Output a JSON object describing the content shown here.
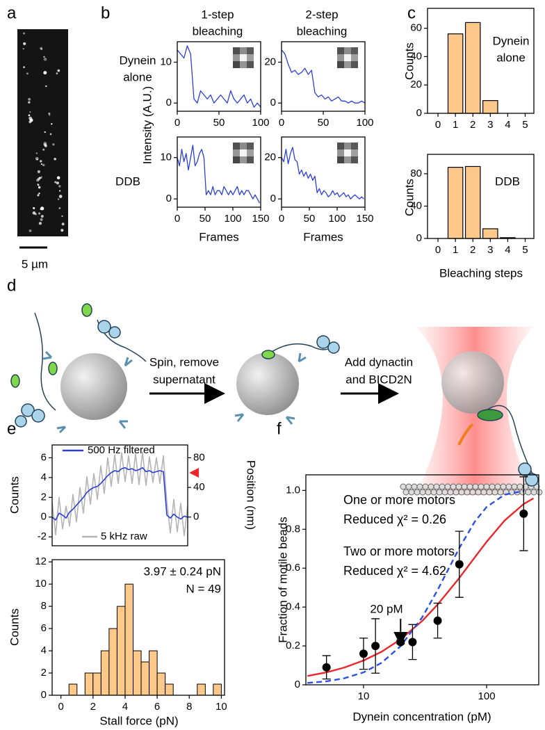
{
  "panel_labels": [
    "a",
    "b",
    "c",
    "d",
    "e",
    "f"
  ],
  "image": {
    "scale_bar": "5 µm"
  },
  "diagram": {
    "steps": [
      [
        "Spin, remove",
        "supernatant"
      ],
      [
        "Add dynactin",
        "and BICD2N"
      ]
    ]
  },
  "chart_data": [
    {
      "type": "line",
      "title": [
        "1-step",
        "bleaching"
      ],
      "row_label": [
        "Dynein",
        "alone"
      ],
      "ylabel": "Intensity (A.U.)",
      "x": [
        0,
        4,
        8,
        12,
        16,
        20,
        24,
        28,
        32,
        36,
        40,
        44,
        48,
        52,
        56,
        60,
        64,
        68,
        72,
        76,
        80,
        84,
        88,
        92,
        96,
        100
      ],
      "values": [
        13,
        12,
        11,
        14,
        12,
        1,
        0,
        3,
        2,
        1,
        2,
        0,
        1,
        2,
        1,
        0,
        3,
        1,
        0,
        1,
        2,
        0,
        1,
        -1,
        0,
        -1
      ],
      "color": "#2b3fd8",
      "xlim": [
        0,
        100
      ],
      "xticks": [
        0,
        50,
        100
      ],
      "ylim": [
        -2,
        15
      ],
      "yticks": [
        0,
        10
      ]
    },
    {
      "type": "line",
      "title": [
        "2-step",
        "bleaching"
      ],
      "x": [
        0,
        4,
        8,
        12,
        16,
        20,
        24,
        28,
        32,
        36,
        40,
        44,
        48,
        52,
        56,
        60,
        64,
        68,
        72,
        76,
        80,
        84,
        88,
        92,
        96,
        100
      ],
      "values": [
        26,
        24,
        19,
        15,
        16,
        14,
        15,
        17,
        14,
        16,
        5,
        3,
        4,
        2,
        3,
        1,
        2,
        3,
        1,
        1,
        0,
        1,
        0,
        0,
        1,
        0
      ],
      "color": "#2b3fd8",
      "xlim": [
        0,
        100
      ],
      "xticks": [
        0,
        50,
        100
      ],
      "ylim": [
        -4,
        30
      ],
      "yticks": [
        0,
        20
      ]
    },
    {
      "type": "line",
      "row_label": "DDB",
      "xlabel": "Frames",
      "x": [
        0,
        4,
        8,
        12,
        16,
        20,
        24,
        28,
        32,
        36,
        40,
        44,
        48,
        52,
        56,
        60,
        64,
        68,
        72,
        76,
        80,
        84,
        88,
        92,
        96,
        100,
        104,
        108,
        112,
        116,
        120,
        124,
        128,
        132,
        136,
        140,
        144,
        148
      ],
      "values": [
        10,
        8,
        12,
        9,
        11,
        7,
        10,
        13,
        8,
        9,
        11,
        12,
        10,
        1,
        2,
        1,
        3,
        1,
        2,
        2,
        1,
        3,
        2,
        1,
        2,
        1,
        2,
        3,
        1,
        2,
        1,
        2,
        2,
        1,
        0,
        1,
        0,
        -1
      ],
      "color": "#2b3fd8",
      "xlim": [
        0,
        150
      ],
      "xticks": [
        0,
        50,
        100,
        150
      ],
      "ylim": [
        -2,
        15
      ],
      "yticks": [
        0,
        10
      ]
    },
    {
      "type": "line",
      "xlabel": "Frames",
      "x": [
        0,
        4,
        8,
        12,
        16,
        20,
        24,
        28,
        32,
        36,
        40,
        44,
        48,
        52,
        56,
        60,
        64,
        68,
        72,
        76,
        80,
        84,
        88,
        92,
        96,
        100,
        104,
        108,
        112,
        116,
        120,
        124,
        128,
        132,
        136,
        140,
        144,
        148
      ],
      "values": [
        20,
        18,
        24,
        17,
        22,
        25,
        19,
        18,
        12,
        14,
        11,
        13,
        10,
        12,
        9,
        11,
        3,
        5,
        2,
        4,
        3,
        1,
        2,
        4,
        2,
        3,
        1,
        2,
        3,
        1,
        2,
        0,
        1,
        2,
        1,
        0,
        1,
        0
      ],
      "color": "#2b3fd8",
      "xlim": [
        0,
        150
      ],
      "xticks": [
        0,
        50,
        100,
        150
      ],
      "ylim": [
        -4,
        30
      ],
      "yticks": [
        0,
        20
      ]
    },
    {
      "type": "bar",
      "annotation": [
        "Dynein",
        "alone"
      ],
      "ylabel": "Counts",
      "x": [
        1,
        2,
        3,
        4,
        5
      ],
      "values": [
        56,
        64,
        9,
        0,
        0
      ],
      "color": "#fdc98a",
      "xlim": [
        -0.6,
        5.5
      ],
      "xticks": [
        0,
        1,
        2,
        3,
        4,
        5
      ],
      "ylim": [
        0,
        74
      ],
      "yticks": [
        0,
        20,
        40,
        60
      ]
    },
    {
      "type": "bar",
      "annotation": "DDB",
      "ylabel": "Counts",
      "xlabel": "Bleaching steps",
      "x": [
        1,
        2,
        3,
        4,
        5
      ],
      "values": [
        88,
        89,
        12,
        1,
        0
      ],
      "color": "#fdc98a",
      "xlim": [
        -0.6,
        5.5
      ],
      "xticks": [
        0,
        1,
        2,
        3,
        4,
        5
      ],
      "ylim": [
        0,
        104
      ],
      "yticks": [
        0,
        40,
        80
      ]
    },
    {
      "type": "line",
      "ylabel": "Counts",
      "y2label": "Position (nm)",
      "series": [
        {
          "name": "5 kHz raw",
          "color": "#b4b4b4",
          "values": [
            1.5,
            -1.8,
            2.0,
            -1.2,
            1.1,
            -0.9,
            2.3,
            -0.5,
            3.0,
            0.4,
            4.1,
            1.3,
            4.4,
            1.8,
            5.2,
            2.4,
            6.0,
            3.1,
            6.3,
            3.4,
            6.5,
            3.6,
            6.2,
            3.4,
            6.4,
            3.3,
            6.6,
            3.2,
            6.1,
            3.5,
            6.0,
            3.4,
            6.2,
            1.5,
            -1.6,
            1.8,
            -1.5,
            1.4,
            -1.9,
            1.2
          ]
        },
        {
          "name": "500 Hz filtered",
          "color": "#2b3fd8",
          "values": [
            0,
            -0.3,
            0.4,
            0.2,
            -0.1,
            0.5,
            0.8,
            1.2,
            1.6,
            2.0,
            2.5,
            2.8,
            3.0,
            3.1,
            3.4,
            3.8,
            4.2,
            4.5,
            4.7,
            4.6,
            4.9,
            5.0,
            4.8,
            4.9,
            4.7,
            4.8,
            5.0,
            4.6,
            4.7,
            4.5,
            4.6,
            4.7,
            4.6,
            0.2,
            -0.1,
            0.3,
            0,
            -0.2,
            0.1,
            0
          ]
        }
      ],
      "ylim": [
        -2.9,
        7.3
      ],
      "yticks": [
        -2,
        0,
        2,
        4,
        6
      ],
      "y2lim": [
        -38.7,
        97.3
      ],
      "y2ticks": [
        0,
        40,
        80
      ]
    },
    {
      "type": "histogram",
      "xlabel": "Stall force (pN)",
      "ylabel": "Counts",
      "annotations": [
        "3.97 ± 0.24 pN",
        "N = 49"
      ],
      "bins": [
        0,
        0.5,
        1,
        1.5,
        2,
        2.5,
        3,
        3.5,
        4,
        4.5,
        5,
        5.5,
        6,
        6.5,
        7,
        7.5,
        8,
        8.5,
        9,
        9.5,
        10
      ],
      "values": [
        0,
        1,
        0,
        2,
        2,
        4,
        6,
        8,
        10,
        4,
        3,
        4,
        2,
        1,
        0,
        0,
        0,
        1,
        0,
        1
      ],
      "color": "#fdc98a",
      "xlim": [
        -0.55,
        10.2
      ],
      "xticks": [
        0,
        2,
        4,
        6,
        8,
        10
      ],
      "ylim": [
        0,
        12.2
      ],
      "yticks": [
        0,
        2,
        4,
        6,
        8,
        10,
        12
      ]
    },
    {
      "type": "scatter",
      "xlabel": "Dynein concentration (pM)",
      "ylabel": "Fraction of motile beads",
      "log_x": true,
      "x": [
        5,
        10,
        12.5,
        20,
        25,
        40,
        60,
        200
      ],
      "values": [
        0.09,
        0.16,
        0.2,
        0.22,
        0.22,
        0.33,
        0.62,
        0.88
      ],
      "errors": [
        0.06,
        0.08,
        0.14,
        0.01,
        0.09,
        0.09,
        0.17,
        0.19
      ],
      "color": "#000000",
      "series": [
        {
          "name": "One or more motors",
          "annotation": "Reduced χ² = 0.26",
          "color": "#e8262b",
          "style": "solid",
          "x": [
            3.5,
            5,
            7,
            10,
            14,
            20,
            30,
            40,
            60,
            80,
            100,
            140,
            200,
            240
          ],
          "values": [
            0.0455,
            0.064,
            0.089,
            0.125,
            0.17,
            0.234,
            0.329,
            0.413,
            0.55,
            0.655,
            0.736,
            0.845,
            0.93,
            0.959
          ]
        },
        {
          "name": "Two or more motors",
          "annotation": "Reduced χ² = 4.62",
          "color": "#2b50e0",
          "style": "dashed",
          "x": [
            3.5,
            5,
            7,
            10,
            14,
            20,
            30,
            40,
            60,
            80,
            100,
            140,
            200
          ],
          "values": [
            0.0097,
            0.018,
            0.034,
            0.064,
            0.113,
            0.199,
            0.348,
            0.488,
            0.704,
            0.839,
            0.915,
            0.978,
            0.997
          ]
        }
      ],
      "annotations": [
        {
          "text": "20 pM",
          "x": 20
        }
      ],
      "xlim": [
        3.4,
        265
      ],
      "xticks": [
        10,
        100
      ],
      "ylim": [
        0,
        1.08
      ],
      "yticks": [
        0,
        0.2,
        0.4,
        0.6,
        0.8,
        {
          "value": 1,
          "label": "1.0"
        }
      ]
    }
  ]
}
